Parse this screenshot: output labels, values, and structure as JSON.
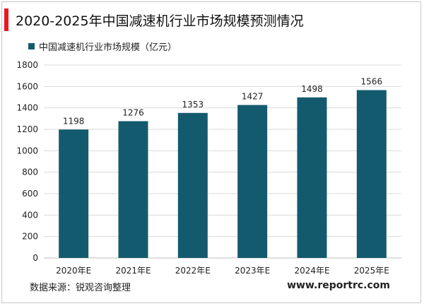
{
  "title": "2020-2025年中国减速机行业市场规模预测情况",
  "colors": {
    "bar": "#145A6E",
    "accent": "#e8191f",
    "grid": "#d9d9d9"
  },
  "source": "数据来源：锐观咨询整理",
  "website": "www.reportrc.com",
  "chart_data": {
    "type": "bar",
    "categories": [
      "2020年E",
      "2021年E",
      "2022年E",
      "2023年E",
      "2024年E",
      "2025年E"
    ],
    "series": [
      {
        "name": "中国减速机行业市场规模（亿元）",
        "values": [
          1198,
          1276,
          1353,
          1427,
          1498,
          1566
        ]
      }
    ],
    "ylim": [
      0,
      1800
    ],
    "yticks": [
      0,
      200,
      400,
      600,
      800,
      1000,
      1200,
      1400,
      1600,
      1800
    ],
    "grid": true,
    "legend": "top-left",
    "data_labels": true
  }
}
